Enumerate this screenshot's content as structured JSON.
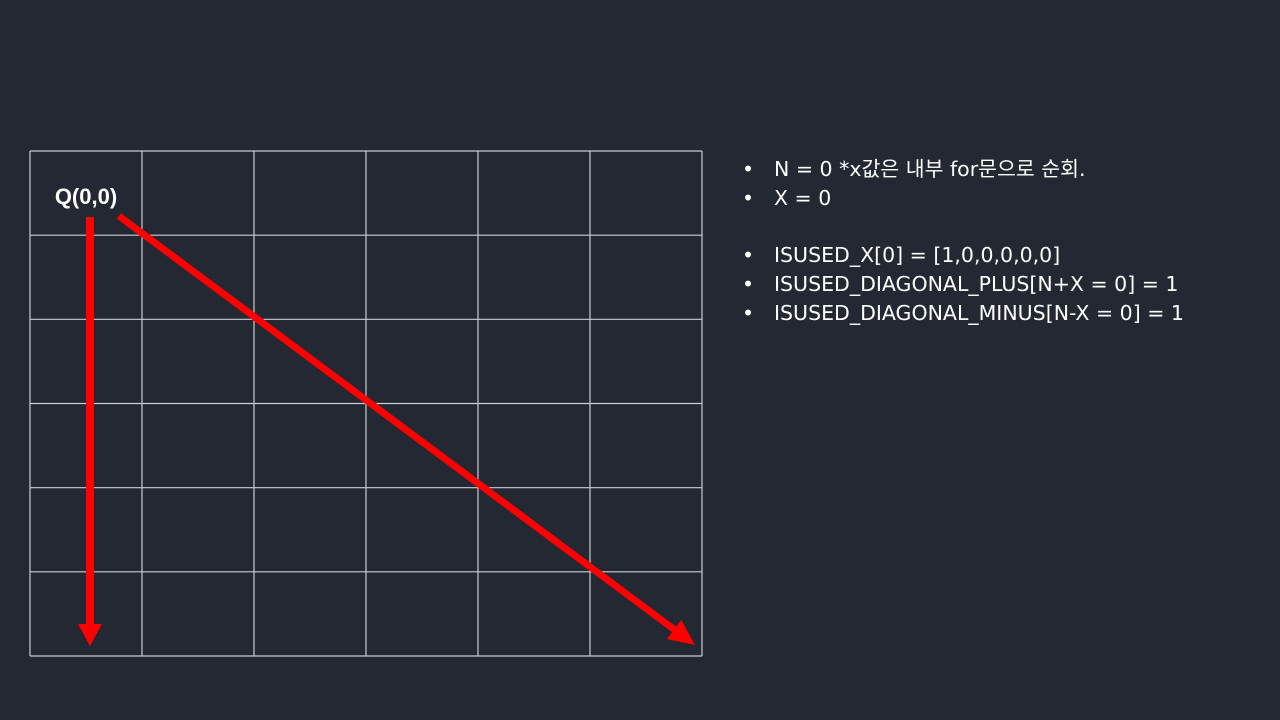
{
  "diagram": {
    "grid": {
      "cols": 6,
      "rows": 6,
      "line_color": "#c9ccd2"
    },
    "queen_label": "Q(0,0)",
    "arrow_color": "#ff0000",
    "arrows": [
      "column-down",
      "diagonal-down-right"
    ]
  },
  "notes": {
    "items": [
      "N = 0 *x값은 내부 for문으로 순회.",
      "X = 0",
      "ISUSED_X[0]  = [1,0,0,0,0,0]",
      "ISUSED_DIAGONAL_PLUS[N+X = 0] = 1",
      "ISUSED_DIAGONAL_MINUS[N-X = 0] = 1"
    ]
  },
  "colors": {
    "background": "#232833",
    "text": "#ffffff"
  }
}
